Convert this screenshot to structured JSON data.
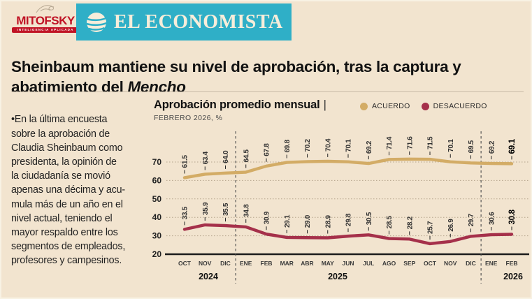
{
  "brand": {
    "mitofsky": {
      "name": "MITOFSKY",
      "tagline": "INTELIGENCIA APLICADA",
      "color": "#c01325"
    },
    "economista": {
      "name": "EL ECONOMISTA",
      "bg_color": "#2fafc7",
      "text_color": "#f7edda"
    }
  },
  "headline": {
    "text": "Sheinbaum mantiene su nivel de aprobación, tras la captura y\nabatimiento del ",
    "italic": "Mencho"
  },
  "note": {
    "text": "•En la última encuesta\nsobre la aprobación de\nClaudia Sheinbaum como\npresidenta, la opinión de\nla ciudadanía se movió\napenas una décima y acu-\nmula más de un año en el\nnivel actual, teniendo el\nmayor respaldo entre los\nsegmentos de empleados,\nprofesores y campesinos."
  },
  "chart": {
    "title_divider": "|"
  },
  "chart_data": {
    "type": "line",
    "title": "Aprobación promedio mensual",
    "subtitle": "FEBRERO 2026, %",
    "categories": [
      "OCT",
      "NOV",
      "DIC",
      "ENE",
      "FEB",
      "MAR",
      "ABR",
      "MAY",
      "JUN",
      "JUL",
      "AGO",
      "SEP",
      "OCT",
      "NOV",
      "DIC",
      "ENE",
      "FEB"
    ],
    "year_groups": [
      {
        "label": "2024",
        "from": 0,
        "to": 2
      },
      {
        "label": "2025",
        "from": 3,
        "to": 14
      },
      {
        "label": "2026",
        "from": 15,
        "to": 16
      }
    ],
    "series": [
      {
        "name": "ACUERDO",
        "color": "#d3ac66",
        "values": [
          61.5,
          63.4,
          64.0,
          64.5,
          67.8,
          69.8,
          70.2,
          70.4,
          70.1,
          69.2,
          71.4,
          71.6,
          71.5,
          70.1,
          69.5,
          69.2,
          69.1
        ]
      },
      {
        "name": "DESACUERDO",
        "color": "#a5304a",
        "values": [
          33.5,
          35.9,
          35.5,
          34.8,
          30.9,
          29.1,
          29.0,
          28.9,
          29.8,
          30.5,
          28.5,
          28.2,
          25.7,
          26.9,
          29.7,
          30.6,
          30.8
        ]
      }
    ],
    "ylim": [
      20,
      75
    ],
    "yticks": [
      20,
      30,
      40,
      50,
      60,
      70
    ],
    "grid": true,
    "legend_position": "top-right",
    "colors": {
      "background": "#f2e4cf",
      "grid": "#b4a48c",
      "baseline": "#1b1b1b",
      "separator": "#4a4a4a"
    }
  }
}
